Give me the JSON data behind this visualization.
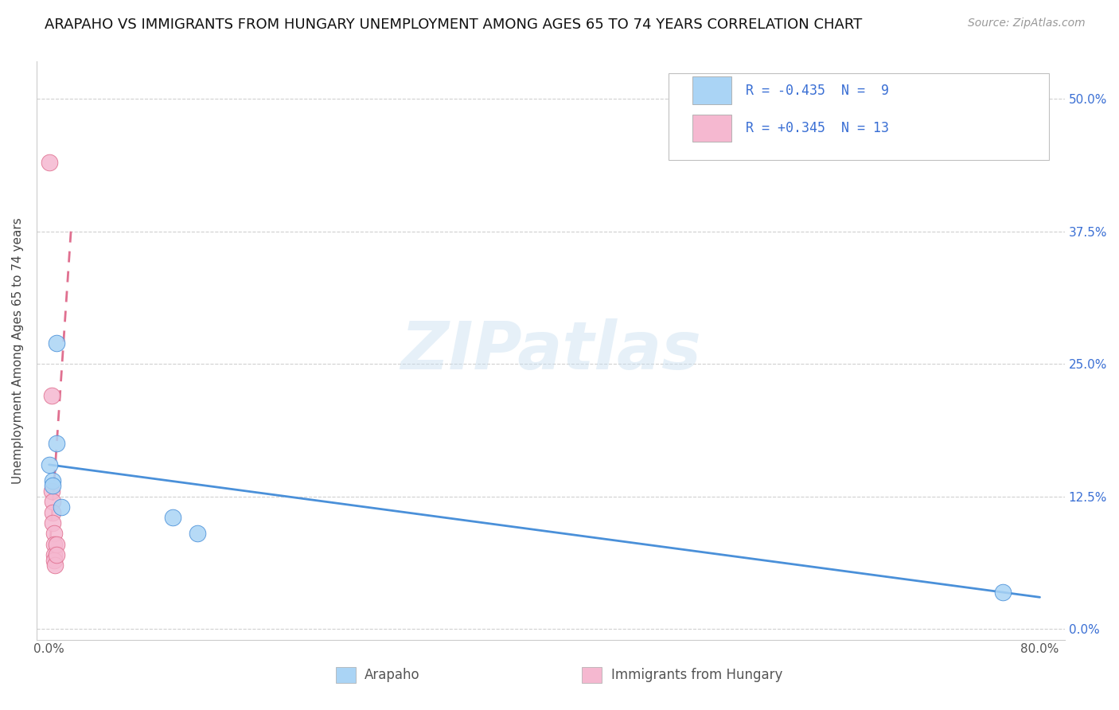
{
  "title": "ARAPAHO VS IMMIGRANTS FROM HUNGARY UNEMPLOYMENT AMONG AGES 65 TO 74 YEARS CORRELATION CHART",
  "source": "Source: ZipAtlas.com",
  "ylabel": "Unemployment Among Ages 65 to 74 years",
  "ytick_labels": [
    "0.0%",
    "12.5%",
    "25.0%",
    "37.5%",
    "50.0%"
  ],
  "ytick_values": [
    0.0,
    0.125,
    0.25,
    0.375,
    0.5
  ],
  "xtick_labels": [
    "0.0%",
    "80.0%"
  ],
  "xtick_values": [
    0.0,
    0.8
  ],
  "xlim": [
    -0.01,
    0.82
  ],
  "ylim": [
    -0.01,
    0.535
  ],
  "legend_entries": [
    {
      "label": "Arapaho",
      "R": -0.435,
      "N": 9,
      "color": "#aad4f5",
      "edge": "#6baed6"
    },
    {
      "label": "Immigrants from Hungary",
      "R": 0.345,
      "N": 13,
      "color": "#f5b8d0",
      "edge": "#d48aaa"
    }
  ],
  "arapaho_points": [
    [
      0.0,
      0.155
    ],
    [
      0.003,
      0.14
    ],
    [
      0.003,
      0.135
    ],
    [
      0.006,
      0.27
    ],
    [
      0.006,
      0.175
    ],
    [
      0.01,
      0.115
    ],
    [
      0.1,
      0.105
    ],
    [
      0.12,
      0.09
    ],
    [
      0.77,
      0.035
    ]
  ],
  "hungary_points": [
    [
      0.0,
      0.44
    ],
    [
      0.002,
      0.22
    ],
    [
      0.002,
      0.13
    ],
    [
      0.003,
      0.12
    ],
    [
      0.003,
      0.11
    ],
    [
      0.003,
      0.1
    ],
    [
      0.004,
      0.09
    ],
    [
      0.004,
      0.08
    ],
    [
      0.004,
      0.07
    ],
    [
      0.004,
      0.065
    ],
    [
      0.005,
      0.06
    ],
    [
      0.006,
      0.08
    ],
    [
      0.006,
      0.07
    ]
  ],
  "arapaho_line": {
    "x0": 0.0,
    "y0": 0.155,
    "x1": 0.8,
    "y1": 0.03
  },
  "hungary_line": {
    "x0": 0.0,
    "y0": 0.065,
    "x1": 0.018,
    "y1": 0.38
  },
  "arapaho_line_color": "#4a90d9",
  "hungary_line_color": "#e07090",
  "arapaho_dot_color": "#aad4f5",
  "hungary_dot_color": "#f5b8d0",
  "watermark_text": "ZIPatlas",
  "background_color": "#ffffff",
  "grid_color": "#d0d0d0",
  "title_fontsize": 13,
  "axis_label_fontsize": 11,
  "tick_fontsize": 11,
  "legend_R_color": "#3a6fd4",
  "legend_label_color": "#222222",
  "right_tick_color": "#3a6fd4",
  "bottom_legend_color": "#555555"
}
